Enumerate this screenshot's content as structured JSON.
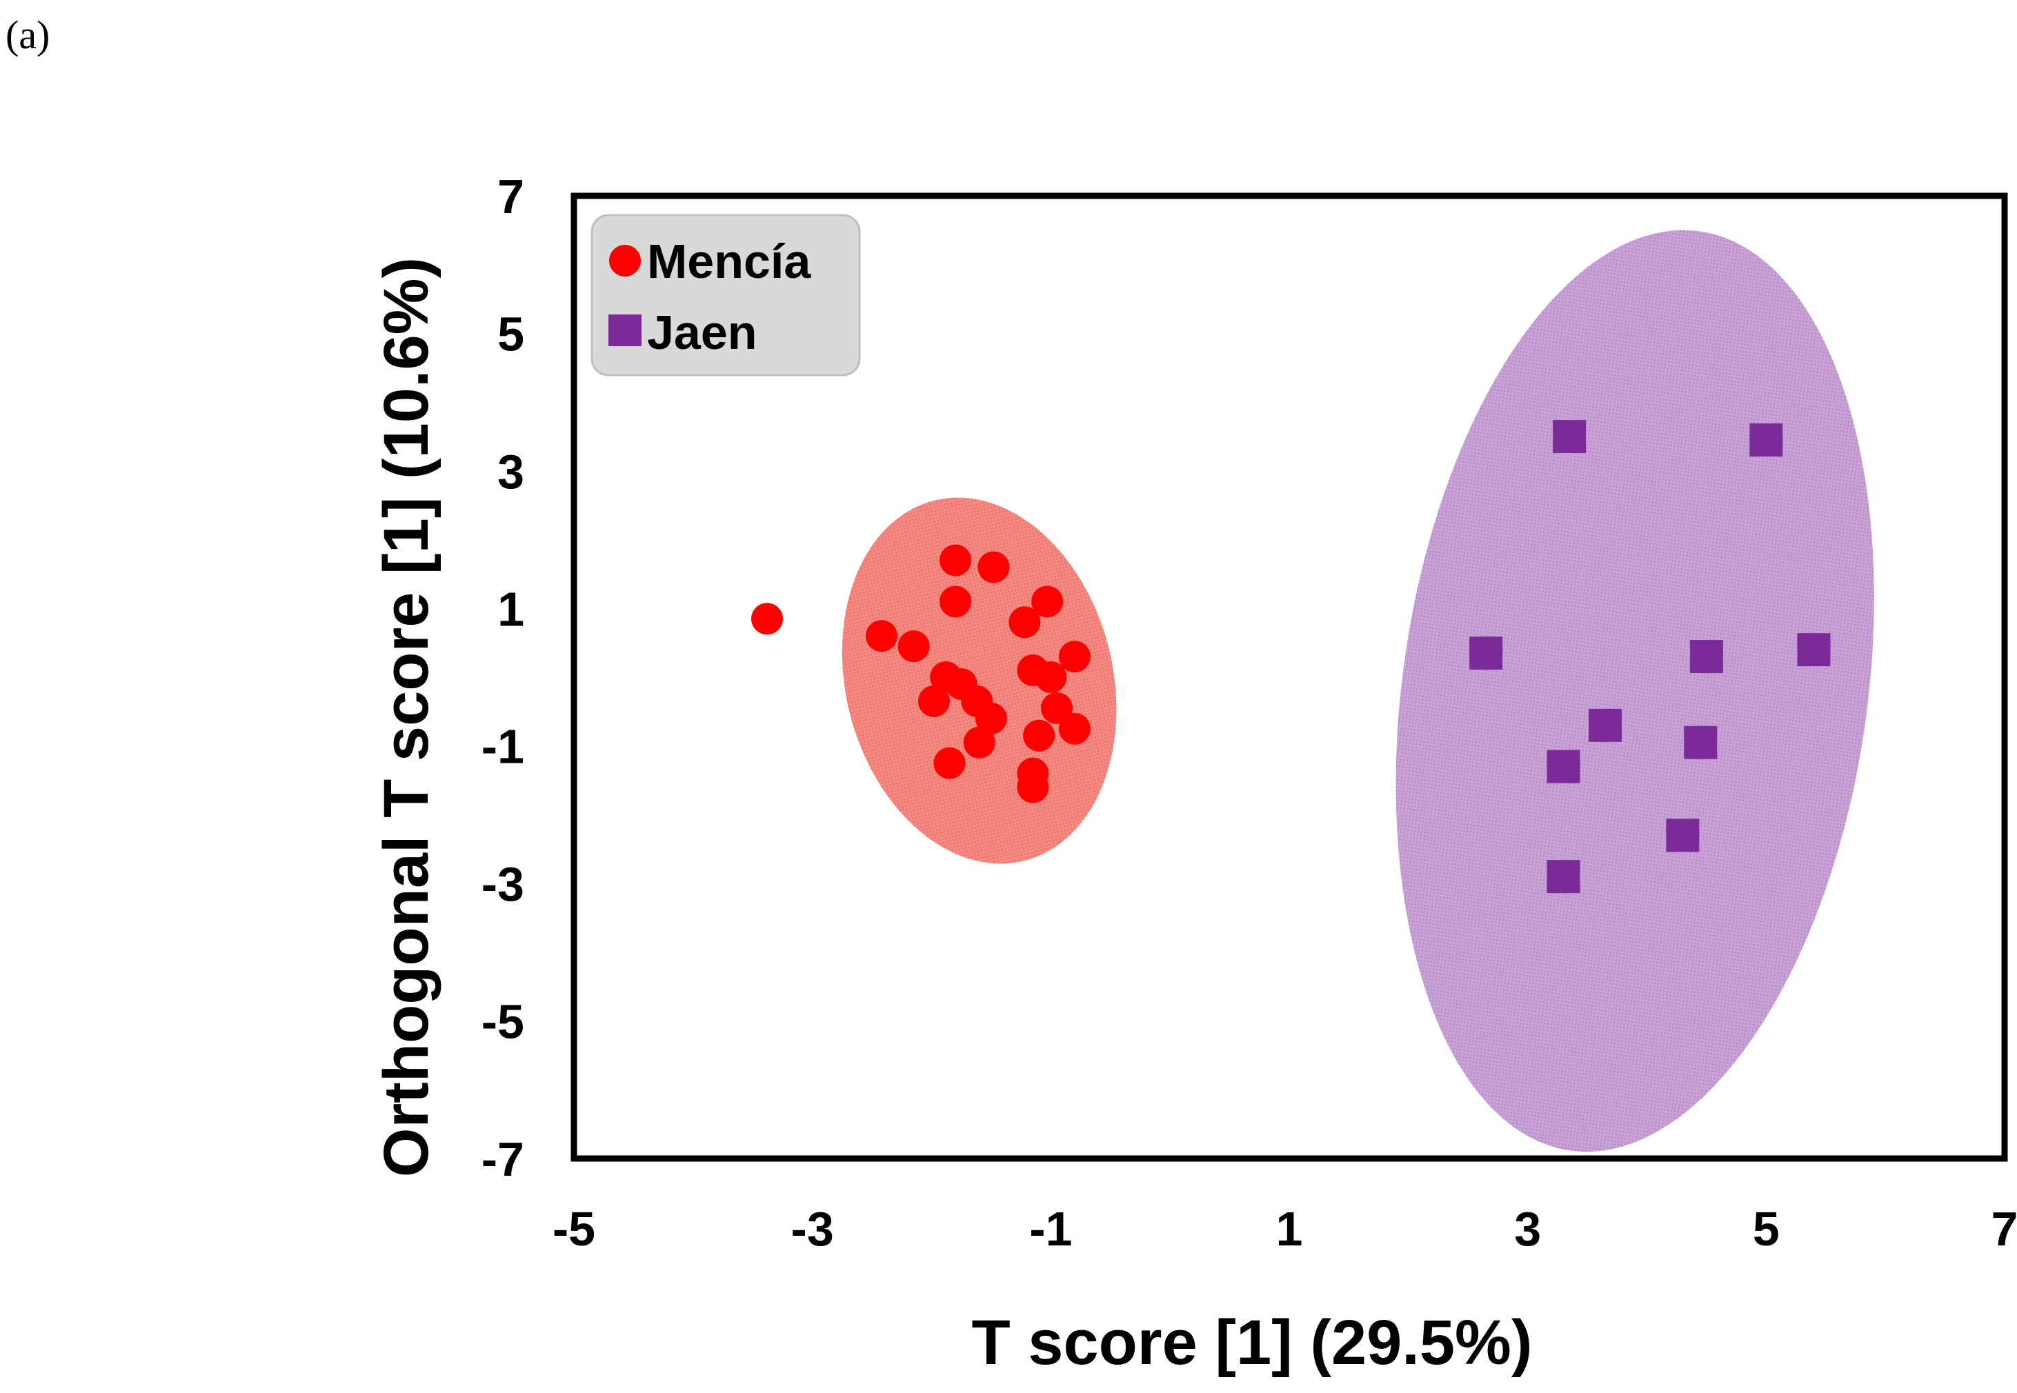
{
  "panel_label": "(a)",
  "colors": {
    "mencia": "#ff0000",
    "jaen": "#7b2a9a",
    "mencia_ellipse": "#f38a82",
    "jaen_ellipse": "#c8a2d6",
    "legend_bg": "#d9d9d9"
  },
  "chart_data": {
    "type": "scatter",
    "title": "",
    "xlabel": "T score [1] (29.5%)",
    "ylabel": "Orthogonal T score [1] (10.6%)",
    "xlim": [
      -5,
      7
    ],
    "ylim": [
      -7,
      7
    ],
    "xticks": [
      -5,
      -3,
      -1,
      1,
      3,
      5,
      7
    ],
    "yticks": [
      -7,
      -5,
      -3,
      -1,
      1,
      3,
      5,
      7
    ],
    "xtick_labels": [
      "-5",
      "-3",
      "-1",
      "1",
      "3",
      "5",
      "7"
    ],
    "ytick_labels": [
      "-7",
      "-5",
      "-3",
      "-1",
      "1",
      "3",
      "5",
      "7"
    ],
    "grid": false,
    "legend_position": "top-left",
    "series": [
      {
        "name": "Mencía",
        "marker": "circle",
        "color": "#ff0000",
        "ellipse": {
          "cx": -1.6,
          "cy": -0.05,
          "rx": 1.12,
          "ry": 2.7,
          "angle": -14
        },
        "points": [
          {
            "x": -3.38,
            "y": 0.85
          },
          {
            "x": -2.42,
            "y": 0.6
          },
          {
            "x": -2.15,
            "y": 0.45
          },
          {
            "x": -1.8,
            "y": 1.7
          },
          {
            "x": -1.48,
            "y": 1.6
          },
          {
            "x": -1.8,
            "y": 1.1
          },
          {
            "x": -1.22,
            "y": 0.8
          },
          {
            "x": -1.03,
            "y": 1.1
          },
          {
            "x": -0.8,
            "y": 0.3
          },
          {
            "x": -1.15,
            "y": 0.1
          },
          {
            "x": -1.0,
            "y": 0.0
          },
          {
            "x": -1.88,
            "y": 0.0
          },
          {
            "x": -1.75,
            "y": -0.1
          },
          {
            "x": -1.98,
            "y": -0.35
          },
          {
            "x": -1.62,
            "y": -0.35
          },
          {
            "x": -1.5,
            "y": -0.6
          },
          {
            "x": -1.6,
            "y": -0.95
          },
          {
            "x": -0.95,
            "y": -0.45
          },
          {
            "x": -0.8,
            "y": -0.75
          },
          {
            "x": -1.1,
            "y": -0.85
          },
          {
            "x": -1.85,
            "y": -1.25
          },
          {
            "x": -1.15,
            "y": -1.4
          },
          {
            "x": -1.15,
            "y": -1.6
          }
        ]
      },
      {
        "name": "Jaen",
        "marker": "square",
        "color": "#7b2a9a",
        "ellipse": {
          "cx": 3.9,
          "cy": -0.2,
          "rx": 1.95,
          "ry": 6.75,
          "angle": 8
        },
        "points": [
          {
            "x": 3.35,
            "y": 3.5
          },
          {
            "x": 5.0,
            "y": 3.45
          },
          {
            "x": 2.65,
            "y": 0.35
          },
          {
            "x": 4.5,
            "y": 0.3
          },
          {
            "x": 5.4,
            "y": 0.4
          },
          {
            "x": 3.65,
            "y": -0.7
          },
          {
            "x": 4.45,
            "y": -0.95
          },
          {
            "x": 3.3,
            "y": -1.3
          },
          {
            "x": 4.3,
            "y": -2.3
          },
          {
            "x": 3.3,
            "y": -2.9
          }
        ]
      }
    ]
  }
}
